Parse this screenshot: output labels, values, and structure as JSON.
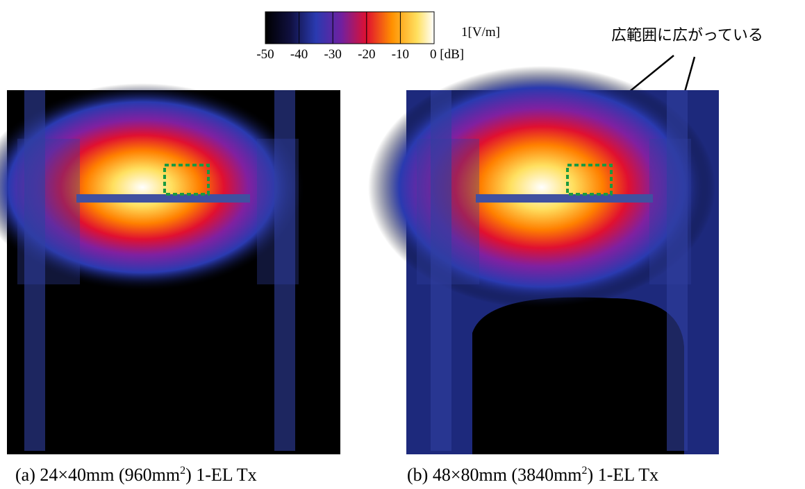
{
  "colorbar": {
    "unit": "1[V/m]",
    "tick_labels": [
      "-50",
      "-40",
      "-30",
      "-20",
      "-10",
      "0 [dB]"
    ]
  },
  "annotation": "広範囲に広がっている",
  "panels": [
    {
      "caption": {
        "text": "(a) 24×40mm (960mm",
        "sup": "2",
        "tail": ") 1-EL Tx"
      }
    },
    {
      "caption": {
        "text": "(b) 48×80mm (3840mm",
        "sup": "2",
        "tail": ") 1-EL Tx"
      }
    }
  ]
}
